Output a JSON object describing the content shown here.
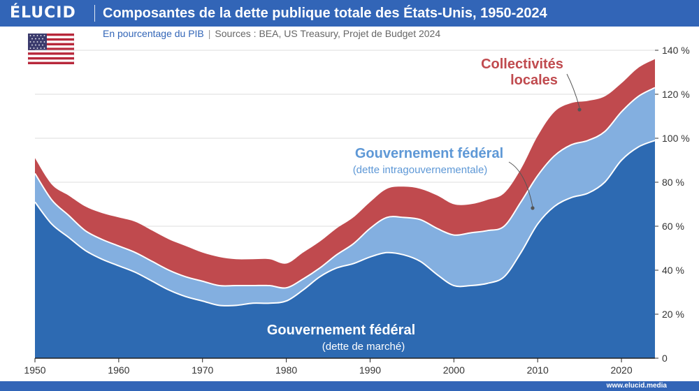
{
  "brand": {
    "logo": "ÉLUCID",
    "url": "www.elucid.media"
  },
  "header": {
    "title": "Composantes de la dette publique totale des États-Unis, 1950-2024",
    "subtitle": "En pourcentage du PIB",
    "sources": "Sources : BEA, US Treasury, Projet de Budget 2024"
  },
  "colors": {
    "bar": "#3265b7",
    "market": "#2d6ab2",
    "intragov": "#83afe0",
    "local": "#c04a4e",
    "white": "#ffffff"
  },
  "chart_data": {
    "type": "area",
    "stacked": true,
    "title": "Composantes de la dette publique totale des États-Unis, 1950-2024",
    "xlabel": "",
    "ylabel": "En pourcentage du PIB",
    "xlim": [
      1950,
      2024
    ],
    "ylim": [
      0,
      140
    ],
    "x_ticks": [
      1950,
      1960,
      1970,
      1980,
      1990,
      2000,
      2010,
      2020
    ],
    "y_ticks": [
      0,
      20,
      40,
      60,
      80,
      100,
      120,
      140
    ],
    "y_tick_labels": [
      "0",
      "20 %",
      "40 %",
      "60 %",
      "80 %",
      "100 %",
      "120 %",
      "140 %"
    ],
    "x": [
      1950,
      1952,
      1954,
      1956,
      1958,
      1960,
      1962,
      1964,
      1966,
      1968,
      1970,
      1972,
      1974,
      1976,
      1978,
      1980,
      1982,
      1984,
      1986,
      1988,
      1990,
      1992,
      1994,
      1996,
      1998,
      2000,
      2002,
      2004,
      2006,
      2008,
      2010,
      2012,
      2014,
      2016,
      2018,
      2020,
      2022,
      2024
    ],
    "series": [
      {
        "name": "Gouvernement fédéral (dette de marché)",
        "values": [
          71,
          61,
          55,
          49,
          45,
          42,
          39,
          35,
          31,
          28,
          26,
          24,
          24,
          25,
          25,
          26,
          31,
          37,
          41,
          43,
          46,
          48,
          47,
          44,
          38,
          33,
          33,
          34,
          37,
          48,
          61,
          69,
          73,
          75,
          80,
          90,
          96,
          99
        ]
      },
      {
        "name": "Gouvernement fédéral (dette intragouvernementale)",
        "values": [
          13,
          11,
          10,
          9,
          9,
          9,
          9,
          9,
          9,
          9,
          9,
          9,
          9,
          8,
          8,
          6,
          5,
          4,
          6,
          9,
          13,
          16,
          17,
          19,
          21,
          23,
          24,
          24,
          23,
          23,
          22,
          23,
          24,
          24,
          23,
          22,
          23,
          24
        ]
      },
      {
        "name": "Collectivités locales",
        "values": [
          7,
          7,
          9,
          11,
          12,
          13,
          14,
          14,
          14,
          14,
          13,
          13,
          12,
          12,
          12,
          11,
          12,
          12,
          12,
          12,
          12,
          13,
          14,
          14,
          15,
          14,
          13,
          14,
          15,
          15,
          18,
          20,
          19,
          18,
          16,
          13,
          13,
          13
        ]
      }
    ],
    "annotations": [
      {
        "title": "Gouvernement fédéral",
        "sub": "(dette de marché)"
      },
      {
        "title": "Gouvernement fédéral",
        "sub": "(dette intragouvernementale)"
      },
      {
        "title": "Collectivités",
        "sub": "locales"
      }
    ]
  }
}
